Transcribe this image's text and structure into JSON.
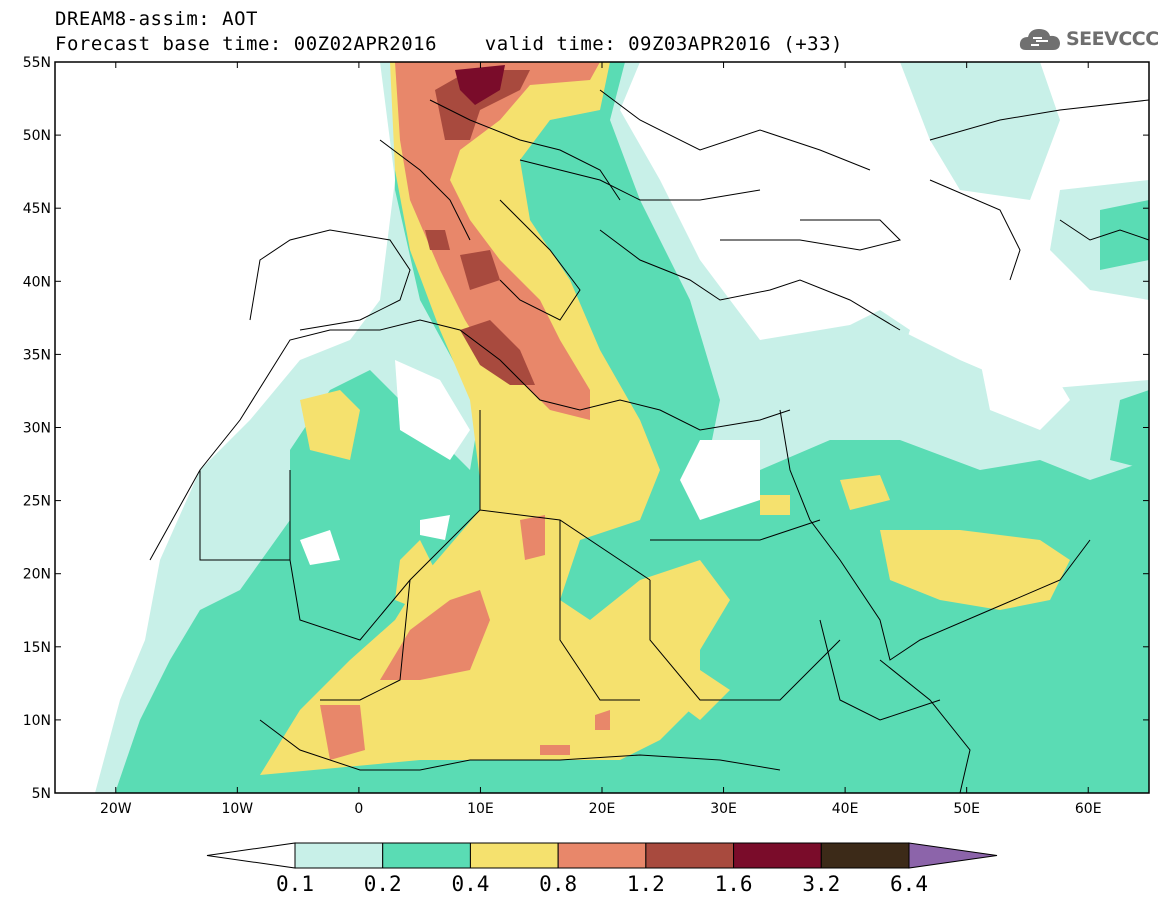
{
  "header": {
    "title_line1": "DREAM8-assim: AOT",
    "title_line2": "Forecast base time: 00Z02APR2016    valid time: 09Z03APR2016 (+33)",
    "logo_text": "SEEVCCC"
  },
  "map": {
    "projection": "lat-lon",
    "lon_range": [
      -25,
      65
    ],
    "lat_range": [
      5,
      55
    ],
    "lat_ticks": [
      {
        "value": 55,
        "label": "55N"
      },
      {
        "value": 50,
        "label": "50N"
      },
      {
        "value": 45,
        "label": "45N"
      },
      {
        "value": 40,
        "label": "40N"
      },
      {
        "value": 35,
        "label": "35N"
      },
      {
        "value": 30,
        "label": "30N"
      },
      {
        "value": 25,
        "label": "25N"
      },
      {
        "value": 20,
        "label": "20N"
      },
      {
        "value": 15,
        "label": "15N"
      },
      {
        "value": 10,
        "label": "10N"
      },
      {
        "value": 5,
        "label": "5N"
      }
    ],
    "lon_ticks": [
      {
        "value": -20,
        "label": "20W"
      },
      {
        "value": -10,
        "label": "10W"
      },
      {
        "value": 0,
        "label": "0"
      },
      {
        "value": 10,
        "label": "10E"
      },
      {
        "value": 20,
        "label": "20E"
      },
      {
        "value": 30,
        "label": "30E"
      },
      {
        "value": 40,
        "label": "40E"
      },
      {
        "value": 50,
        "label": "50E"
      },
      {
        "value": 60,
        "label": "60E"
      }
    ]
  },
  "colorbar": {
    "levels": [
      "0.1",
      "0.2",
      "0.4",
      "0.8",
      "1.2",
      "1.6",
      "3.2",
      "6.4"
    ],
    "colors": [
      "#ffffff",
      "#c8f0e8",
      "#5adcb4",
      "#f5e16e",
      "#e8876a",
      "#a84a3e",
      "#7a0c2a",
      "#3c2a18",
      "#8c64aa"
    ]
  }
}
